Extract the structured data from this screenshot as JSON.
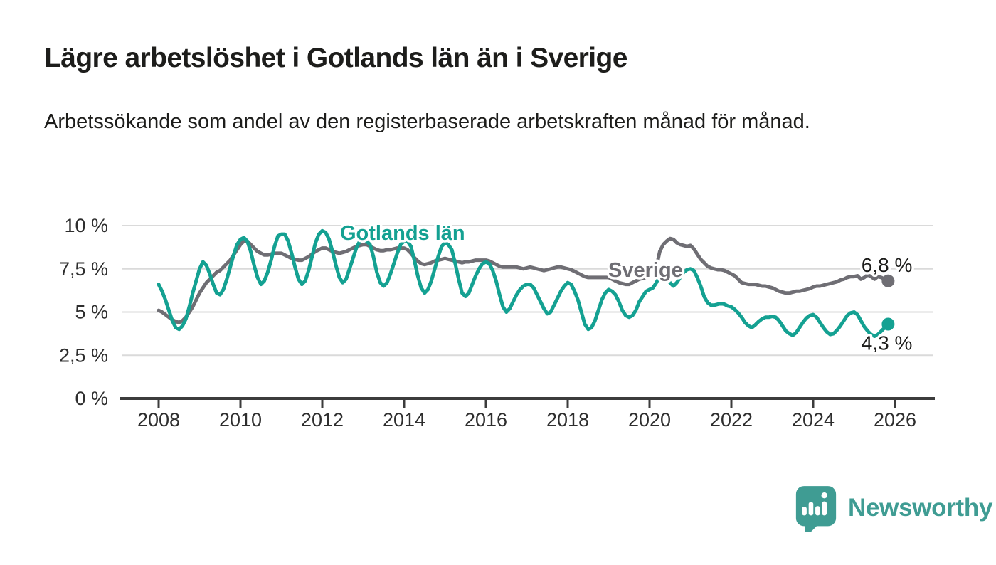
{
  "header": {
    "title": "Lägre arbetslöshet i Gotlands län än i Sverige",
    "subtitle": "Arbetssökande som andel av den registerbaserade arbetskraften månad för månad."
  },
  "chart_data": {
    "type": "line",
    "title": "Lägre arbetslöshet i Gotlands län än i Sverige",
    "unit": "%",
    "frequency": "monthly",
    "grid": true,
    "legend_position": "inline-labels",
    "x_axis": {
      "ticks": [
        2008,
        2010,
        2012,
        2014,
        2016,
        2018,
        2020,
        2022,
        2024,
        2026
      ],
      "range": [
        2008,
        2027
      ]
    },
    "y_axis": {
      "range": [
        0,
        10
      ],
      "ticks": [
        {
          "label": "0 %",
          "value": 0
        },
        {
          "label": "2,5 %",
          "value": 2.5
        },
        {
          "label": "5 %",
          "value": 5
        },
        {
          "label": "7,5 %",
          "value": 7.5
        },
        {
          "label": "10 %",
          "value": 10
        }
      ]
    },
    "series": [
      {
        "name": "Gotlands län",
        "color": "#14a192",
        "start": "2008-01",
        "end": "2025-11",
        "end_label": "4,3 %",
        "last_value": 4.3,
        "values": [
          6.6,
          6.2,
          5.7,
          5.1,
          4.5,
          4.1,
          4.0,
          4.2,
          4.6,
          5.3,
          6.1,
          6.8,
          7.5,
          7.9,
          7.7,
          7.2,
          6.6,
          6.1,
          6.0,
          6.3,
          6.9,
          7.6,
          8.3,
          8.9,
          9.2,
          9.3,
          9.1,
          8.5,
          7.7,
          7.0,
          6.6,
          6.8,
          7.3,
          8.0,
          8.8,
          9.4,
          9.5,
          9.5,
          9.1,
          8.4,
          7.6,
          6.9,
          6.6,
          6.8,
          7.4,
          8.2,
          9.0,
          9.5,
          9.7,
          9.6,
          9.2,
          8.5,
          7.7,
          7.0,
          6.7,
          6.9,
          7.5,
          8.1,
          8.7,
          9.1,
          9.2,
          9.1,
          8.9,
          8.2,
          7.3,
          6.7,
          6.5,
          6.7,
          7.2,
          7.8,
          8.4,
          8.9,
          9.1,
          9.1,
          8.8,
          8.0,
          7.1,
          6.4,
          6.1,
          6.3,
          6.8,
          7.5,
          8.2,
          8.8,
          9.0,
          8.9,
          8.6,
          7.8,
          6.9,
          6.1,
          5.9,
          6.1,
          6.6,
          7.1,
          7.5,
          7.8,
          7.9,
          7.8,
          7.4,
          6.8,
          6.0,
          5.3,
          5.0,
          5.2,
          5.6,
          6.0,
          6.3,
          6.5,
          6.6,
          6.6,
          6.4,
          6.0,
          5.6,
          5.2,
          4.9,
          5.0,
          5.4,
          5.8,
          6.2,
          6.5,
          6.7,
          6.6,
          6.2,
          5.7,
          5.0,
          4.3,
          4.0,
          4.1,
          4.5,
          5.1,
          5.7,
          6.1,
          6.3,
          6.2,
          6.0,
          5.6,
          5.1,
          4.8,
          4.7,
          4.8,
          5.1,
          5.6,
          5.9,
          6.2,
          6.3,
          6.4,
          6.7,
          7.1,
          7.2,
          7.0,
          6.7,
          6.5,
          6.7,
          7.0,
          7.3,
          7.45,
          7.5,
          7.4,
          7.0,
          6.5,
          5.9,
          5.55,
          5.4,
          5.4,
          5.45,
          5.5,
          5.45,
          5.35,
          5.3,
          5.15,
          4.95,
          4.7,
          4.4,
          4.2,
          4.1,
          4.25,
          4.45,
          4.6,
          4.7,
          4.7,
          4.75,
          4.7,
          4.5,
          4.2,
          3.9,
          3.75,
          3.65,
          3.8,
          4.1,
          4.4,
          4.65,
          4.8,
          4.85,
          4.7,
          4.4,
          4.1,
          3.85,
          3.7,
          3.75,
          3.95,
          4.2,
          4.5,
          4.8,
          4.95,
          5.0,
          4.85,
          4.5,
          4.15,
          3.9,
          3.7,
          3.6,
          3.7,
          3.9,
          4.1,
          4.3
        ]
      },
      {
        "name": "Sverige",
        "color": "#6f6e74",
        "start": "2008-01",
        "end": "2025-11",
        "end_label": "6,8 %",
        "last_value": 6.8,
        "values": [
          5.1,
          5.0,
          4.85,
          4.7,
          4.55,
          4.45,
          4.4,
          4.5,
          4.7,
          5.0,
          5.3,
          5.7,
          6.1,
          6.4,
          6.7,
          6.9,
          7.1,
          7.3,
          7.4,
          7.6,
          7.8,
          8.0,
          8.3,
          8.6,
          8.9,
          9.1,
          9.1,
          8.9,
          8.7,
          8.5,
          8.4,
          8.3,
          8.3,
          8.35,
          8.4,
          8.4,
          8.4,
          8.3,
          8.2,
          8.1,
          8.05,
          8.0,
          8.0,
          8.1,
          8.2,
          8.35,
          8.5,
          8.6,
          8.7,
          8.7,
          8.6,
          8.5,
          8.45,
          8.4,
          8.45,
          8.5,
          8.6,
          8.7,
          8.8,
          8.85,
          8.9,
          8.9,
          8.8,
          8.7,
          8.6,
          8.55,
          8.55,
          8.6,
          8.6,
          8.65,
          8.7,
          8.7,
          8.7,
          8.6,
          8.4,
          8.15,
          7.95,
          7.8,
          7.75,
          7.8,
          7.85,
          7.95,
          8.0,
          8.05,
          8.1,
          8.05,
          8.0,
          7.95,
          7.9,
          7.85,
          7.9,
          7.9,
          7.95,
          8.0,
          8.0,
          8.0,
          8.0,
          7.95,
          7.85,
          7.75,
          7.65,
          7.6,
          7.6,
          7.6,
          7.6,
          7.6,
          7.55,
          7.5,
          7.55,
          7.6,
          7.55,
          7.5,
          7.45,
          7.4,
          7.45,
          7.5,
          7.55,
          7.6,
          7.6,
          7.55,
          7.5,
          7.45,
          7.35,
          7.25,
          7.15,
          7.05,
          7.0,
          7.0,
          7.0,
          7.0,
          7.0,
          7.0,
          7.0,
          6.9,
          6.8,
          6.7,
          6.65,
          6.6,
          6.6,
          6.7,
          6.8,
          6.9,
          6.95,
          7.0,
          7.1,
          7.1,
          7.6,
          8.5,
          8.9,
          9.1,
          9.25,
          9.2,
          9.0,
          8.9,
          8.85,
          8.8,
          8.85,
          8.65,
          8.35,
          8.05,
          7.85,
          7.65,
          7.55,
          7.5,
          7.45,
          7.45,
          7.4,
          7.3,
          7.2,
          7.1,
          6.9,
          6.7,
          6.65,
          6.6,
          6.6,
          6.6,
          6.55,
          6.5,
          6.5,
          6.45,
          6.4,
          6.3,
          6.2,
          6.15,
          6.1,
          6.1,
          6.15,
          6.2,
          6.2,
          6.25,
          6.3,
          6.35,
          6.45,
          6.5,
          6.5,
          6.55,
          6.6,
          6.65,
          6.7,
          6.75,
          6.85,
          6.9,
          7.0,
          7.05,
          7.05,
          7.1,
          6.9,
          7.0,
          7.15,
          7.05,
          6.9,
          7.05,
          7.0,
          6.9,
          6.8
        ]
      }
    ]
  },
  "branding": {
    "name": "Newsworthy",
    "icon": "bar-chart-speech-bubble-icon",
    "color": "#3f9c93"
  }
}
